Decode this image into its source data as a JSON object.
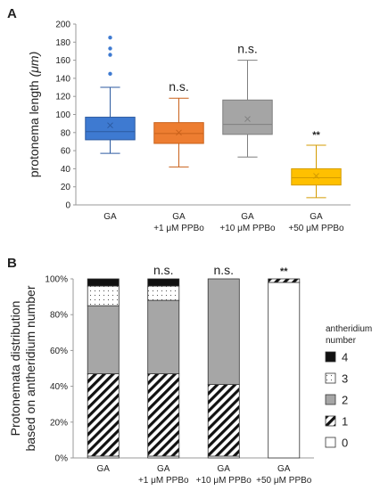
{
  "chart_data": [
    {
      "panel": "A",
      "type": "box",
      "ylabel": "protonema length",
      "ylabel_unit": "(μm)",
      "ylim": [
        0,
        200
      ],
      "yticks": [
        0,
        20,
        40,
        60,
        80,
        100,
        120,
        140,
        160,
        180,
        200
      ],
      "categories": [
        {
          "line1": "GA",
          "line2": ""
        },
        {
          "line1": "GA",
          "line2": "+1 μM PPBo"
        },
        {
          "line1": "GA",
          "line2": "+10 μM PPBo"
        },
        {
          "line1": "GA",
          "line2": "+50 μM PPBo"
        }
      ],
      "boxes": [
        {
          "min": 57,
          "q1": 72,
          "median": 81,
          "q3": 97,
          "max": 130,
          "mean": 88,
          "outliers": [
            145,
            166,
            173,
            185
          ],
          "color": "#3e7ad1",
          "edge": "#2c5aa0",
          "annotation": ""
        },
        {
          "min": 42,
          "q1": 68,
          "median": 79,
          "q3": 91,
          "max": 118,
          "mean": 80,
          "outliers": [],
          "color": "#ed7d31",
          "edge": "#c9611a",
          "annotation": "n.s."
        },
        {
          "min": 53,
          "q1": 78,
          "median": 89,
          "q3": 116,
          "max": 160,
          "mean": 95,
          "outliers": [],
          "color": "#a5a5a5",
          "edge": "#7f7f7f",
          "annotation": "n.s."
        },
        {
          "min": 8,
          "q1": 22,
          "median": 30,
          "q3": 40,
          "max": 66,
          "mean": 32,
          "outliers": [],
          "color": "#ffc000",
          "edge": "#d39b00",
          "annotation": "**"
        }
      ]
    },
    {
      "panel": "B",
      "type": "stacked-bar",
      "ylabel_line1": "Protonemata distribution",
      "ylabel_line2": "based on antheridium number",
      "ylim": [
        0,
        100
      ],
      "yticks": [
        "0%",
        "20%",
        "40%",
        "60%",
        "80%",
        "100%"
      ],
      "categories": [
        {
          "line1": "GA",
          "line2": ""
        },
        {
          "line1": "GA",
          "line2": "+1 μM PPBo"
        },
        {
          "line1": "GA",
          "line2": "+10 μM PPBo"
        },
        {
          "line1": "GA",
          "line2": "+50 μM PPBo"
        }
      ],
      "series": [
        {
          "name": "0",
          "values": [
            1,
            1,
            1,
            98
          ]
        },
        {
          "name": "1",
          "values": [
            46,
            46,
            40,
            2
          ]
        },
        {
          "name": "2",
          "values": [
            38,
            41,
            59,
            0
          ]
        },
        {
          "name": "3",
          "values": [
            11,
            8,
            0,
            0
          ]
        },
        {
          "name": "4",
          "values": [
            4,
            4,
            0,
            0
          ]
        }
      ],
      "annotations": [
        "",
        "n.s.",
        "n.s.",
        "**"
      ],
      "legend_title_line1": "antheridium",
      "legend_title_line2": "number",
      "legend_order": [
        "4",
        "3",
        "2",
        "1",
        "0"
      ],
      "legend_position": "right"
    }
  ]
}
